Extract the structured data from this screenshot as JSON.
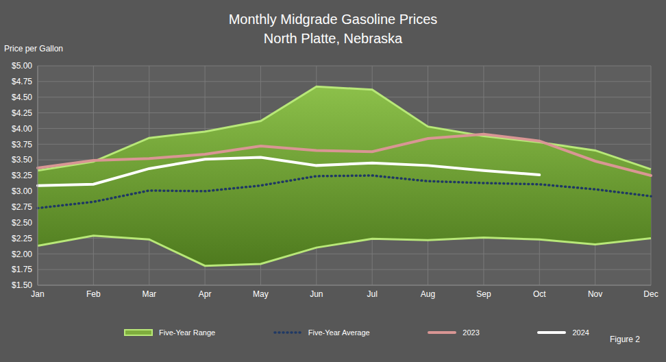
{
  "chart_data": {
    "type": "line",
    "title": "Monthly Midgrade Gasoline Prices",
    "subtitle": "North Platte, Nebraska",
    "y_label": "Price per Gallon",
    "annotation": "Figure 2",
    "categories": [
      "Jan",
      "Feb",
      "Mar",
      "Apr",
      "May",
      "Jun",
      "Jul",
      "Aug",
      "Sep",
      "Oct",
      "Nov",
      "Dec"
    ],
    "ylim": [
      1.5,
      5
    ],
    "yticks": [
      {
        "value": 1.5,
        "label": "$1.50"
      },
      {
        "value": 1.75,
        "label": "$1.75"
      },
      {
        "value": 2,
        "label": "$2.00"
      },
      {
        "value": 2.25,
        "label": "$2.25"
      },
      {
        "value": 2.5,
        "label": "$2.50"
      },
      {
        "value": 2.75,
        "label": "$2.75"
      },
      {
        "value": 3,
        "label": "$3.00"
      },
      {
        "value": 3.25,
        "label": "$3.25"
      },
      {
        "value": 3.5,
        "label": "$3.50"
      },
      {
        "value": 3.75,
        "label": "$3.75"
      },
      {
        "value": 4,
        "label": "$4.00"
      },
      {
        "value": 4.25,
        "label": "$4.25"
      },
      {
        "value": 4.5,
        "label": "$4.50"
      },
      {
        "value": 4.75,
        "label": "$4.75"
      },
      {
        "value": 5,
        "label": "$5.00"
      }
    ],
    "grid": true,
    "legend": "bottom",
    "series": [
      {
        "name": "Five-Year Range",
        "type": "range",
        "color": "#7fae3e",
        "values": [
          [
            2.13,
            3.33
          ],
          [
            2.29,
            3.47
          ],
          [
            2.23,
            3.85
          ],
          [
            1.81,
            3.95
          ],
          [
            1.84,
            4.12
          ],
          [
            2.1,
            4.67
          ],
          [
            2.24,
            4.62
          ],
          [
            2.22,
            4.03
          ],
          [
            2.26,
            3.88
          ],
          [
            2.23,
            3.78
          ],
          [
            2.15,
            3.65
          ],
          [
            2.25,
            3.35
          ]
        ]
      },
      {
        "name": "Five-Year Average",
        "type": "line",
        "color": "#1f3864",
        "line_style": "dotted",
        "values": [
          2.73,
          2.83,
          3.01,
          3.0,
          3.09,
          3.24,
          3.25,
          3.16,
          3.13,
          3.11,
          3.03,
          2.92
        ]
      },
      {
        "name": "2023",
        "type": "line",
        "color": "#d99694",
        "line_style": "solid",
        "values": [
          3.37,
          3.49,
          3.52,
          3.59,
          3.72,
          3.65,
          3.63,
          3.84,
          3.91,
          3.8,
          3.48,
          3.25
        ]
      },
      {
        "name": "2024",
        "type": "line",
        "color": "#ffffff",
        "line_style": "solid",
        "values": [
          3.09,
          3.11,
          3.36,
          3.51,
          3.54,
          3.41,
          3.45,
          3.41,
          3.33,
          3.26,
          null,
          null
        ]
      }
    ]
  }
}
